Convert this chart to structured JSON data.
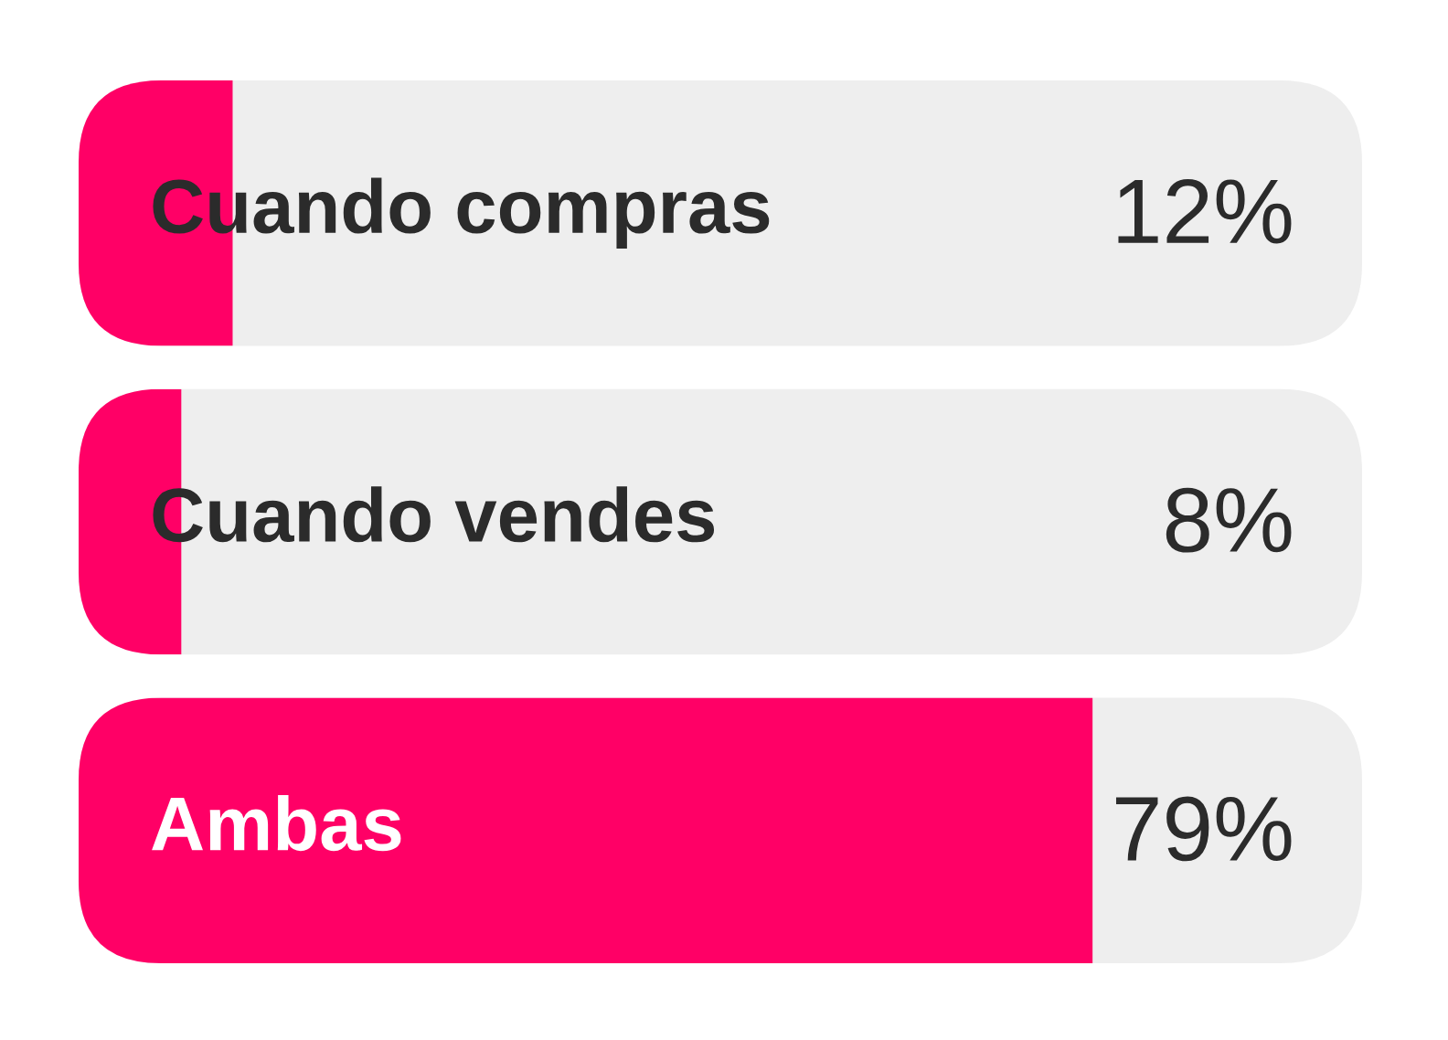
{
  "chart_data": {
    "type": "bar",
    "orientation": "horizontal",
    "categories": [
      "Cuando compras",
      "Cuando vendes",
      "Ambas"
    ],
    "values": [
      12,
      8,
      79
    ],
    "value_labels": [
      "12%",
      "8%",
      "79%"
    ],
    "color": "#ff0066",
    "xlim": [
      0,
      100
    ]
  }
}
